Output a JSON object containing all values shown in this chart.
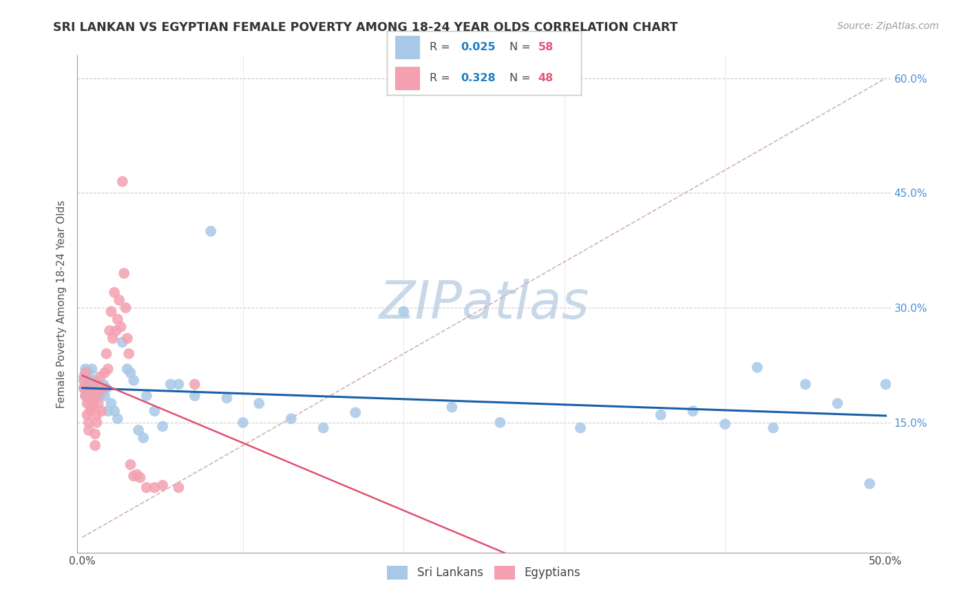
{
  "title": "SRI LANKAN VS EGYPTIAN FEMALE POVERTY AMONG 18-24 YEAR OLDS CORRELATION CHART",
  "source": "Source: ZipAtlas.com",
  "ylabel": "Female Poverty Among 18-24 Year Olds",
  "xlim": [
    0.0,
    0.5
  ],
  "ylim": [
    0.0,
    0.62
  ],
  "sri_lanka_R": 0.025,
  "sri_lanka_N": 58,
  "egypt_R": 0.328,
  "egypt_N": 48,
  "sri_lanka_color": "#a8c8e8",
  "egypt_color": "#f4a0b0",
  "sri_lanka_line_color": "#1a5fa8",
  "egypt_line_color": "#e05070",
  "diagonal_color": "#d0b0b8",
  "watermark_color": "#c8d8e8",
  "legend_R_color": "#1a7fc4",
  "legend_N_color": "#e05878",
  "sl_x": [
    0.001,
    0.001,
    0.002,
    0.002,
    0.003,
    0.003,
    0.004,
    0.004,
    0.005,
    0.005,
    0.006,
    0.006,
    0.007,
    0.007,
    0.008,
    0.009,
    0.01,
    0.011,
    0.012,
    0.013,
    0.014,
    0.015,
    0.016,
    0.018,
    0.02,
    0.022,
    0.025,
    0.028,
    0.03,
    0.032,
    0.035,
    0.038,
    0.04,
    0.045,
    0.05,
    0.055,
    0.06,
    0.07,
    0.08,
    0.09,
    0.1,
    0.11,
    0.13,
    0.15,
    0.17,
    0.2,
    0.23,
    0.26,
    0.31,
    0.36,
    0.4,
    0.43,
    0.45,
    0.47,
    0.49,
    0.5,
    0.38,
    0.42
  ],
  "sl_y": [
    0.21,
    0.195,
    0.22,
    0.185,
    0.2,
    0.19,
    0.215,
    0.18,
    0.205,
    0.195,
    0.22,
    0.185,
    0.2,
    0.175,
    0.205,
    0.195,
    0.2,
    0.185,
    0.195,
    0.2,
    0.185,
    0.195,
    0.165,
    0.175,
    0.165,
    0.155,
    0.255,
    0.22,
    0.215,
    0.205,
    0.14,
    0.13,
    0.185,
    0.165,
    0.145,
    0.2,
    0.2,
    0.185,
    0.4,
    0.182,
    0.15,
    0.175,
    0.155,
    0.143,
    0.163,
    0.295,
    0.17,
    0.15,
    0.143,
    0.16,
    0.148,
    0.143,
    0.2,
    0.175,
    0.07,
    0.2,
    0.165,
    0.222
  ],
  "eg_x": [
    0.001,
    0.001,
    0.002,
    0.002,
    0.003,
    0.003,
    0.004,
    0.004,
    0.005,
    0.005,
    0.006,
    0.006,
    0.007,
    0.007,
    0.008,
    0.008,
    0.009,
    0.009,
    0.01,
    0.01,
    0.011,
    0.012,
    0.013,
    0.014,
    0.015,
    0.016,
    0.017,
    0.018,
    0.019,
    0.02,
    0.021,
    0.022,
    0.023,
    0.024,
    0.025,
    0.026,
    0.027,
    0.028,
    0.029,
    0.03,
    0.032,
    0.034,
    0.036,
    0.04,
    0.045,
    0.05,
    0.06,
    0.07
  ],
  "eg_y": [
    0.205,
    0.195,
    0.215,
    0.185,
    0.175,
    0.16,
    0.15,
    0.14,
    0.165,
    0.175,
    0.19,
    0.17,
    0.2,
    0.18,
    0.12,
    0.135,
    0.15,
    0.16,
    0.175,
    0.188,
    0.21,
    0.165,
    0.195,
    0.215,
    0.24,
    0.22,
    0.27,
    0.295,
    0.26,
    0.32,
    0.27,
    0.285,
    0.31,
    0.275,
    0.465,
    0.345,
    0.3,
    0.26,
    0.24,
    0.095,
    0.08,
    0.082,
    0.078,
    0.065,
    0.065,
    0.068,
    0.065,
    0.2
  ]
}
